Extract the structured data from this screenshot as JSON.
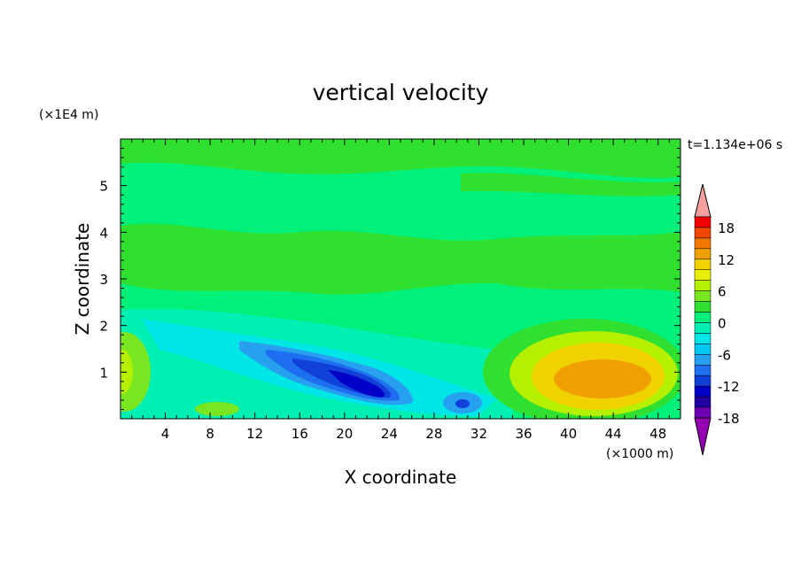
{
  "chart_data": {
    "type": "heatmap",
    "title": "vertical velocity",
    "xlabel": "X coordinate",
    "ylabel": "Z coordinate",
    "x_unit": "(×1000 m)",
    "y_unit": "(×1E4 m)",
    "time_label": "t=1.134e+06 s",
    "x_ticks": [
      "4",
      "8",
      "12",
      "16",
      "20",
      "24",
      "28",
      "32",
      "36",
      "40",
      "44",
      "48"
    ],
    "y_ticks": [
      "1",
      "2",
      "3",
      "4",
      "5"
    ],
    "xlim": [
      0,
      50
    ],
    "ylim": [
      0,
      6
    ],
    "colorbar": {
      "labels": [
        "18",
        "12",
        "6",
        "0",
        "-6",
        "-12",
        "-18"
      ],
      "levels": [
        -20,
        -18,
        -16,
        -14,
        -12,
        -10,
        -8,
        -6,
        -4,
        -2,
        0,
        2,
        4,
        6,
        8,
        10,
        12,
        14,
        16,
        18,
        20
      ],
      "colors": [
        "#9600b4",
        "#6e00b4",
        "#2000a0",
        "#0000c8",
        "#1040d8",
        "#1e6ef0",
        "#28a0f0",
        "#00c8f0",
        "#00e6e6",
        "#00f0b4",
        "#00f07a",
        "#30e030",
        "#78e620",
        "#b4f000",
        "#e6f000",
        "#f0d200",
        "#f0a000",
        "#f07800",
        "#f04600",
        "#f00000",
        "#f4a0a0"
      ]
    },
    "features": [
      {
        "kind": "downdraft",
        "x": 21,
        "z": 0.9,
        "value": -14
      },
      {
        "kind": "downdraft",
        "x": 30.5,
        "z": 0.35,
        "value": -10
      },
      {
        "kind": "updraft",
        "x": 43,
        "z": 0.9,
        "value": 11
      },
      {
        "kind": "updraft",
        "x": 0.5,
        "z": 0.9,
        "value": 5
      },
      {
        "kind": "background",
        "value": 0
      }
    ]
  }
}
